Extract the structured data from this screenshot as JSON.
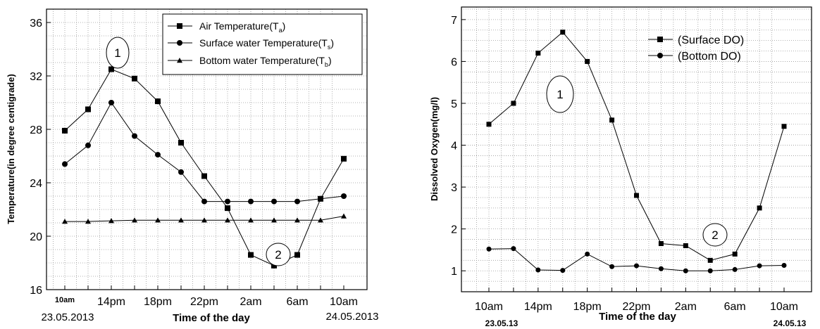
{
  "chart_data": [
    {
      "type": "line",
      "ylabel": "Temperature(in degree centigrade)",
      "xlabel": "Time of the day",
      "ylim": [
        16,
        37
      ],
      "yticks": [
        16,
        20,
        24,
        28,
        32,
        36
      ],
      "grid": true,
      "legend_position": "top-right",
      "x_tick_labels": [
        {
          "x": 0,
          "label": "10am"
        },
        {
          "x": 2,
          "label": "14pm"
        },
        {
          "x": 4,
          "label": "18pm"
        },
        {
          "x": 6,
          "label": "22pm"
        },
        {
          "x": 8,
          "label": "2am"
        },
        {
          "x": 10,
          "label": "6am"
        },
        {
          "x": 12,
          "label": "10am"
        }
      ],
      "date_labels": {
        "start": "23.05.2013",
        "end": "24.05.2013"
      },
      "series": [
        {
          "name": "Air Temperature(T",
          "subscript": "a",
          "marker": "square",
          "values": [
            27.9,
            29.5,
            32.5,
            31.8,
            30.1,
            27.0,
            24.5,
            22.1,
            18.6,
            17.8,
            18.6,
            22.8,
            25.8
          ]
        },
        {
          "name": "Surface water Temperature(T",
          "subscript": "s",
          "marker": "circle",
          "values": [
            25.4,
            26.8,
            30.0,
            27.5,
            26.1,
            24.8,
            22.6,
            22.6,
            22.6,
            22.6,
            22.6,
            22.8,
            23.0
          ]
        },
        {
          "name": "Bottom water Temperature(T",
          "subscript": "b",
          "marker": "triangle",
          "values": [
            21.1,
            21.1,
            21.15,
            21.2,
            21.2,
            21.2,
            21.2,
            21.2,
            21.2,
            21.2,
            21.2,
            21.2,
            21.5
          ]
        }
      ],
      "annotations": [
        "1",
        "2"
      ]
    },
    {
      "type": "line",
      "ylabel": "Dissolved Oxygen(mg/l)",
      "xlabel": "Time of the day",
      "ylim": [
        0.5,
        7.3
      ],
      "yticks": [
        1,
        2,
        3,
        4,
        5,
        6,
        7
      ],
      "grid": true,
      "legend_position": "top-right",
      "x_tick_labels": [
        {
          "x": 0,
          "label": "10am"
        },
        {
          "x": 2,
          "label": "14pm"
        },
        {
          "x": 4,
          "label": "18pm"
        },
        {
          "x": 6,
          "label": "22pm"
        },
        {
          "x": 8,
          "label": "2am"
        },
        {
          "x": 10,
          "label": "6am"
        },
        {
          "x": 12,
          "label": "10am"
        }
      ],
      "date_labels": {
        "start": "23.05.13",
        "end": "24.05.13"
      },
      "series": [
        {
          "name": "(Surface DO)",
          "marker": "square",
          "values": [
            4.5,
            5.0,
            6.2,
            6.7,
            6.0,
            4.6,
            2.8,
            1.65,
            1.6,
            1.25,
            1.4,
            2.5,
            4.45
          ]
        },
        {
          "name": "(Bottom DO)",
          "marker": "circle",
          "values": [
            1.52,
            1.53,
            1.02,
            1.01,
            1.4,
            1.1,
            1.12,
            1.05,
            1.0,
            1.0,
            1.03,
            1.12,
            1.13
          ]
        }
      ],
      "annotations": [
        "1",
        "2"
      ]
    }
  ]
}
